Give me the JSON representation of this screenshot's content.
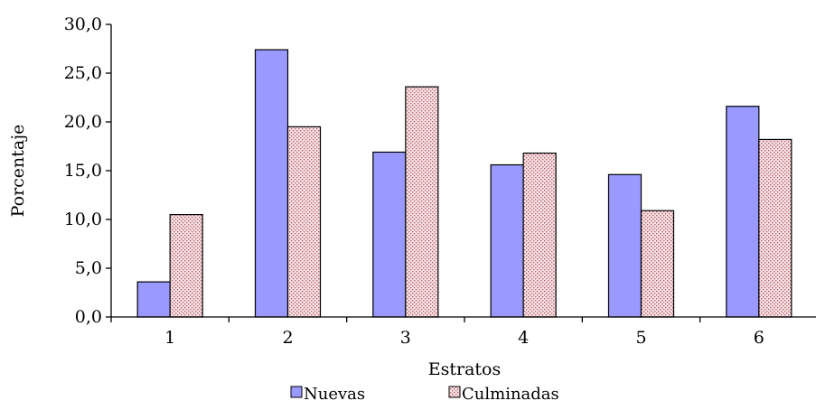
{
  "chart_data": {
    "type": "bar",
    "categories": [
      "1",
      "2",
      "3",
      "4",
      "5",
      "6"
    ],
    "series": [
      {
        "name": "Nuevas",
        "values": [
          3.6,
          27.4,
          16.9,
          15.6,
          14.6,
          21.6
        ],
        "color": "#9999ff",
        "fill": "solid"
      },
      {
        "name": "Culminadas",
        "values": [
          10.5,
          19.5,
          23.6,
          16.8,
          10.9,
          18.2
        ],
        "color": "#f2dcdc",
        "fill": "dotted-pattern",
        "pattern_color": "#c06070"
      }
    ],
    "title": "",
    "xlabel": "Estratos",
    "ylabel": "Porcentaje",
    "ylim": [
      0,
      30
    ],
    "yticks": [
      "0,0",
      "5,0",
      "10,0",
      "15,0",
      "20,0",
      "25,0",
      "30,0"
    ],
    "grid": false,
    "legend": "bottom"
  }
}
